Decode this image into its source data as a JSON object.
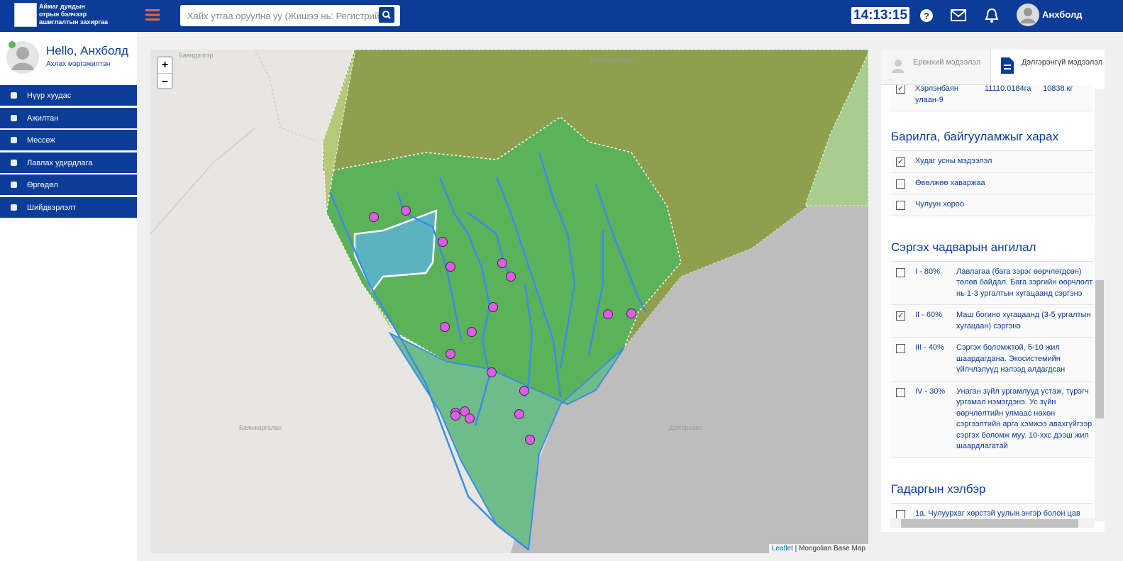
{
  "header": {
    "logo_lines": [
      "Аймаг дундын",
      "отрын бэлчээр",
      "ашиглалтын захиргаа"
    ],
    "search_placeholder": "Хайх утгаа оруулна уу (Жишээ нь: Регистрийн ,",
    "clock": "14:13:15",
    "user": "Анхболд"
  },
  "sidebar": {
    "greeting": "Hello, Анхболд",
    "role": "Ахлах мэргэжилтэн",
    "menu": [
      "Нүүр хуудас",
      "Ажилтан",
      "Мессеж",
      "Лавлах удирдлага",
      "Өргөдөл",
      "Шийдвэрлэлт"
    ]
  },
  "map": {
    "zoom_in": "+",
    "zoom_out": "–",
    "places": [
      "Баяндэлгэр",
      "Цэнхэрмандал",
      "Баянжаргалан",
      "Дэлгэрхаан"
    ],
    "attribution_link": "Leaflet",
    "attribution_text": "| Mongolian Base Map"
  },
  "panel": {
    "tabs": [
      "Ерөнхий мэдээлэл",
      "Дэлгэрэнгүй мэдээлэл"
    ],
    "top_row": {
      "name": "Хэрлэнбаян улаан-9",
      "area": "11110.0184га",
      "amount": "10838 кг",
      "checked": true
    },
    "sections": [
      {
        "title": "Барилга, байгууламжыг харах",
        "items": [
          {
            "label": "Худаг усны мэдээлэл",
            "checked": true
          },
          {
            "label": "Өвөлжөө хаваржаа",
            "checked": false
          },
          {
            "label": "Чулуун хороо",
            "checked": false
          }
        ]
      },
      {
        "title": "Сэргэх чадварын ангилал",
        "items": [
          {
            "code": "I - 80%",
            "label": "Лавлагаа (бага зэрэг өөрчлөгдсөн) төлөв байдал. Бага зэргийн өөрчлөлт нь 1-3 ургалтын хугацаанд сэргэнэ",
            "checked": false
          },
          {
            "code": "II - 60%",
            "label": "Маш богино хугацаанд (3-5 ургалтын хугацаан) сэргэнэ",
            "checked": true
          },
          {
            "code": "III - 40%",
            "label": "Сэргэх боломжтой, 5-10 жил шаардагдана. Экосистемийн үйлчлэлүүд нэлээд алдагдсан",
            "checked": false
          },
          {
            "code": "IV - 30%",
            "label": "Унаган зүйл ургамлууд устаж, түрэгч ургамал нэмэгдэнэ. Ус зүйн өөрчлөлтийн улмаас нөхөн сэргээлтийн арга хэмжээ авахгүйгээр сэргэх боломж муу. 10-ххс дээш жил шаардлагатай",
            "checked": false
          }
        ]
      },
      {
        "title": "Гадаргын хэлбэр",
        "items": [
          {
            "code": "",
            "label": "1а. Чулуурхаг хөрстэй уулын энгэр болон цав",
            "checked": false
          }
        ]
      }
    ]
  }
}
